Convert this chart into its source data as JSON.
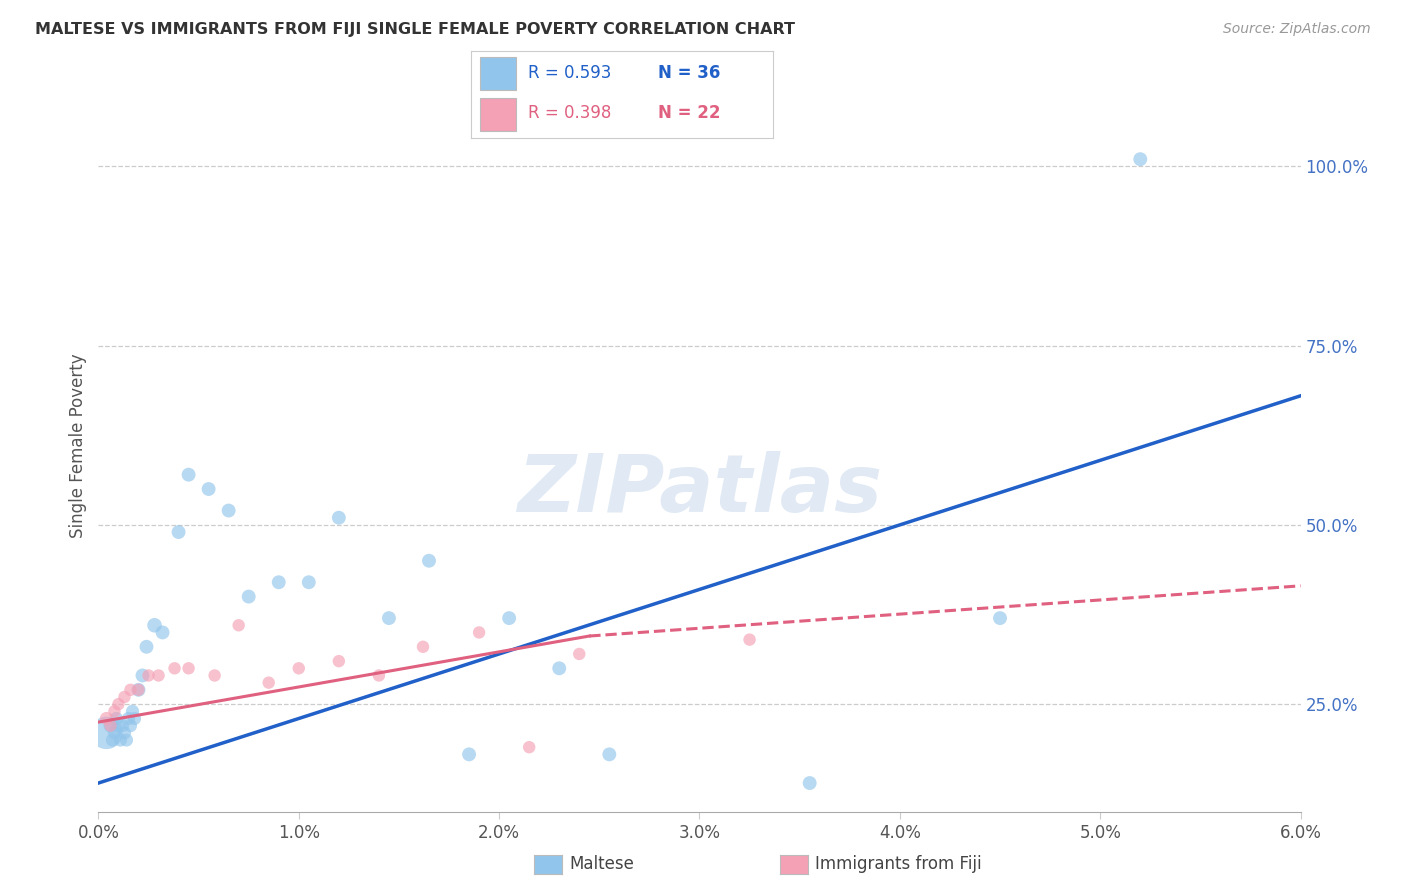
{
  "title": "MALTESE VS IMMIGRANTS FROM FIJI SINGLE FEMALE POVERTY CORRELATION CHART",
  "source": "Source: ZipAtlas.com",
  "ylabel": "Single Female Poverty",
  "x_tick_labels": [
    "0.0%",
    "1.0%",
    "2.0%",
    "3.0%",
    "4.0%",
    "5.0%",
    "6.0%"
  ],
  "x_tick_vals": [
    0.0,
    1.0,
    2.0,
    3.0,
    4.0,
    5.0,
    6.0
  ],
  "y_tick_labels": [
    "25.0%",
    "50.0%",
    "75.0%",
    "100.0%"
  ],
  "y_tick_vals": [
    25.0,
    50.0,
    75.0,
    100.0
  ],
  "xlim": [
    0.0,
    6.0
  ],
  "ylim": [
    10.0,
    112.0
  ],
  "grid_color": "#cccccc",
  "background_color": "#ffffff",
  "watermark_text": "ZIPatlas",
  "maltese_color": "#92C5EB",
  "fiji_color": "#F4A0B5",
  "maltese_line_color": "#2060C8",
  "fiji_line_color": "#E06080",
  "maltese_x": [
    0.04,
    0.06,
    0.07,
    0.08,
    0.09,
    0.1,
    0.11,
    0.12,
    0.13,
    0.14,
    0.15,
    0.16,
    0.17,
    0.18,
    0.2,
    0.22,
    0.24,
    0.28,
    0.32,
    0.4,
    0.45,
    0.55,
    0.65,
    0.75,
    0.9,
    1.05,
    1.2,
    1.45,
    1.65,
    1.85,
    2.05,
    2.3,
    2.55,
    3.55,
    4.5,
    5.2
  ],
  "maltese_y": [
    21,
    22,
    20,
    21,
    23,
    22,
    20,
    22,
    21,
    20,
    23,
    22,
    24,
    23,
    27,
    29,
    33,
    36,
    35,
    49,
    57,
    55,
    52,
    40,
    42,
    42,
    51,
    37,
    45,
    18,
    37,
    30,
    18,
    14,
    37,
    101
  ],
  "maltese_size": [
    550,
    100,
    90,
    90,
    90,
    90,
    90,
    90,
    90,
    90,
    90,
    90,
    90,
    90,
    100,
    100,
    100,
    110,
    100,
    100,
    100,
    100,
    100,
    100,
    100,
    100,
    100,
    100,
    100,
    100,
    100,
    100,
    100,
    100,
    100,
    100
  ],
  "fiji_x": [
    0.04,
    0.06,
    0.08,
    0.1,
    0.13,
    0.16,
    0.2,
    0.25,
    0.3,
    0.38,
    0.45,
    0.58,
    0.7,
    0.85,
    1.0,
    1.2,
    1.4,
    1.62,
    1.9,
    2.15,
    2.4,
    3.25
  ],
  "fiji_y": [
    23,
    22,
    24,
    25,
    26,
    27,
    27,
    29,
    29,
    30,
    30,
    29,
    36,
    28,
    30,
    31,
    29,
    33,
    35,
    19,
    32,
    34
  ],
  "fiji_size": [
    90,
    80,
    80,
    80,
    80,
    80,
    80,
    80,
    80,
    80,
    80,
    80,
    80,
    80,
    80,
    80,
    80,
    80,
    80,
    80,
    80,
    80
  ],
  "blue_line_x0": 0.0,
  "blue_line_x1": 6.0,
  "blue_line_y0": 14.0,
  "blue_line_y1": 68.0,
  "pink_solid_x0": 0.0,
  "pink_solid_x1": 2.45,
  "pink_solid_y0": 22.5,
  "pink_solid_y1": 34.5,
  "pink_dash_x0": 2.45,
  "pink_dash_x1": 6.0,
  "pink_dash_y0": 34.5,
  "pink_dash_y1": 41.5,
  "legend_maltese_R": "R = 0.593",
  "legend_maltese_N": "N = 36",
  "legend_fiji_R": "R = 0.398",
  "legend_fiji_N": "N = 22",
  "bottom_legend_maltese": "Maltese",
  "bottom_legend_fiji": "Immigrants from Fiji"
}
